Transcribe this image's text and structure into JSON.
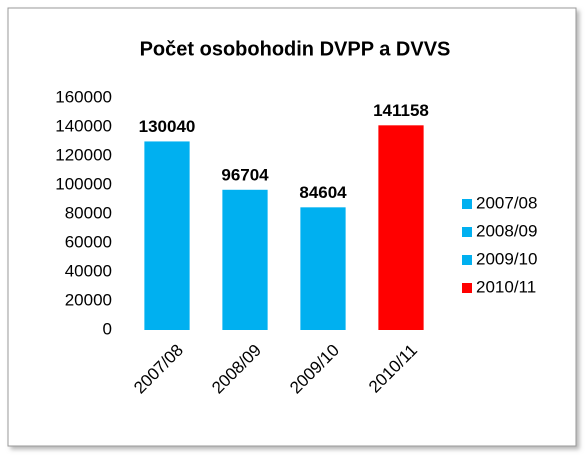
{
  "chart_data": {
    "type": "bar",
    "title": "Počet osobohodin  DVPP a DVVS",
    "categories": [
      "2007/08",
      "2008/09",
      "2009/10",
      "2010/11"
    ],
    "values": [
      130040,
      96704,
      84604,
      141158
    ],
    "colors": [
      "#00b0f0",
      "#00b0f0",
      "#00b0f0",
      "#ff0000"
    ],
    "ylim": [
      0,
      160000
    ],
    "yticks": [
      0,
      20000,
      40000,
      60000,
      80000,
      100000,
      120000,
      140000,
      160000
    ],
    "grid": false,
    "legend": "right"
  }
}
